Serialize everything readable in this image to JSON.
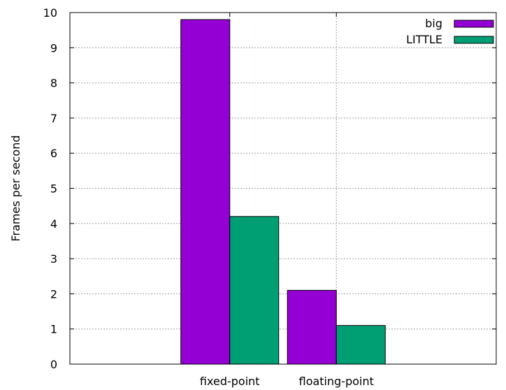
{
  "chart_data": {
    "type": "bar",
    "title": "",
    "xlabel": "",
    "ylabel": "Frames per second",
    "ylim": [
      0,
      10
    ],
    "yticks": [
      "0",
      "1",
      "2",
      "3",
      "4",
      "5",
      "6",
      "7",
      "8",
      "9",
      "10"
    ],
    "grid": true,
    "legend_position": "top-right",
    "categories": [
      "fixed-point",
      "floating-point"
    ],
    "series": [
      {
        "name": "big",
        "values": [
          9.8,
          2.1
        ],
        "color": "#9400D3"
      },
      {
        "name": "LITTLE",
        "values": [
          4.2,
          1.1
        ],
        "color": "#009E73"
      }
    ]
  }
}
